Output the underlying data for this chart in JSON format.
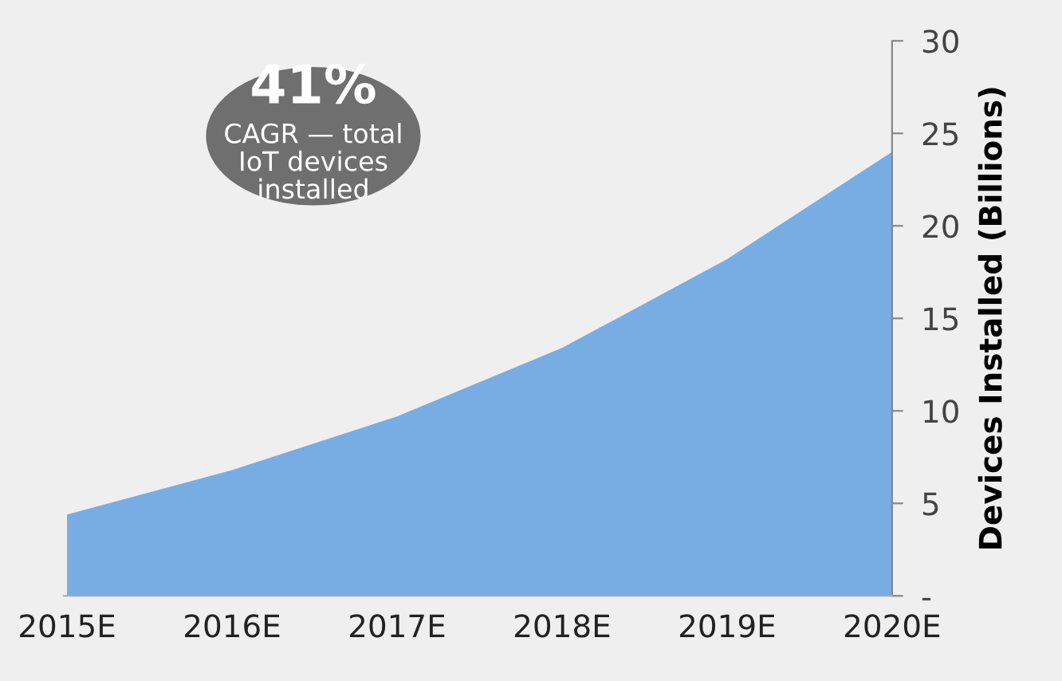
{
  "chart_data": {
    "type": "area",
    "categories": [
      "2015E",
      "2016E",
      "2017E",
      "2018E",
      "2019E",
      "2020E"
    ],
    "values": [
      4.4,
      6.8,
      9.7,
      13.4,
      18.2,
      24
    ],
    "color": "#78ade3",
    "ylabel": "Devices Installed (Billions)",
    "ylim": [
      0,
      30
    ],
    "yticks": [
      {
        "value": 0,
        "label": "-"
      },
      5,
      10,
      15,
      20,
      25,
      30
    ],
    "grid": false,
    "legend": false,
    "annotations": [
      "41%",
      "CAGR — total\nIoT devices\ninstalled"
    ]
  }
}
